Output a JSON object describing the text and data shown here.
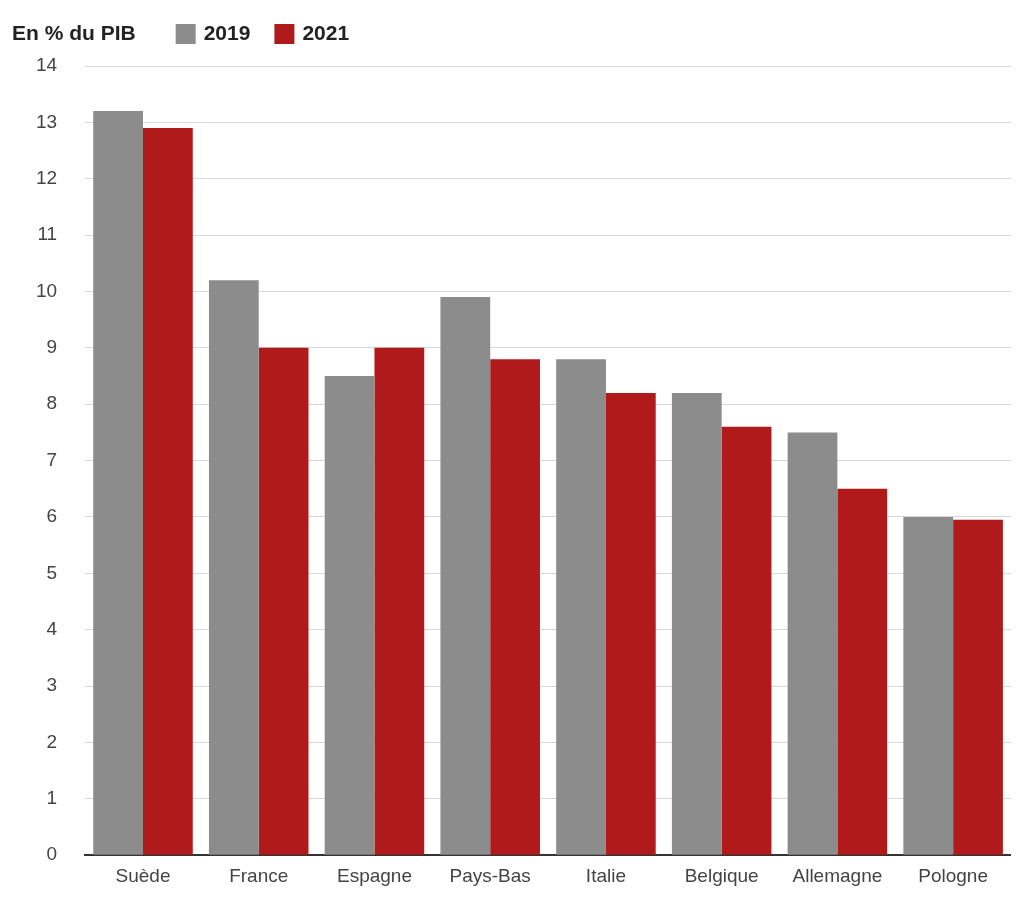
{
  "chart_data": {
    "type": "bar",
    "ylabel": "En % du PIB",
    "categories": [
      "Suède",
      "France",
      "Espagne",
      "Pays-Bas",
      "Italie",
      "Belgique",
      "Allemagne",
      "Pologne"
    ],
    "series": [
      {
        "name": "2019",
        "color": "#8c8c8c",
        "values": [
          13.2,
          10.2,
          8.5,
          9.9,
          8.8,
          8.2,
          7.5,
          6.0
        ]
      },
      {
        "name": "2021",
        "color": "#b01a1a",
        "values": [
          12.9,
          9.0,
          9.0,
          8.8,
          8.2,
          7.6,
          6.5,
          5.95
        ]
      }
    ],
    "ylim": [
      0,
      14
    ],
    "yticks": [
      0,
      1,
      2,
      3,
      4,
      5,
      6,
      7,
      8,
      9,
      10,
      11,
      12,
      13,
      14
    ],
    "grid": "y",
    "legend": "top left"
  }
}
